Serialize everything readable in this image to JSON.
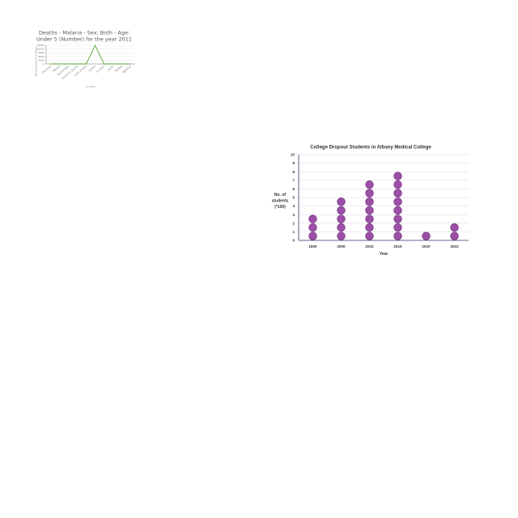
{
  "chart_data": [
    {
      "type": "line",
      "title": "Deaths - Malaria - Sex: Both - Age: Under 5 (Number) for the year 2011",
      "title_lines": [
        "Deaths - Malaria - Sex: Both - Age:",
        "Under 5 (Number) for the year 2011"
      ],
      "xlabel": "Country",
      "ylabel": "No. of deaths in children",
      "categories": [
        "Denmark",
        "Albania",
        "Montenegro",
        "American Samoa",
        "Côte d'Ivoire",
        "Greece",
        "Ecuador",
        "Japan",
        "Tokelau",
        "Tajikistan"
      ],
      "values": [
        0,
        0,
        0,
        0,
        0,
        15000,
        0,
        0,
        0,
        0
      ],
      "yticks": [
        "15000",
        "12000",
        "9000",
        "6000",
        "3000",
        "0"
      ],
      "ylim": [
        0,
        15000
      ],
      "grid": true,
      "line_color": "#5aa02c"
    },
    {
      "type": "scatter",
      "subtype": "dot-plot",
      "title": "College Dropout Students in Albany Medical College",
      "xlabel": "Year",
      "ylabel_lines": [
        "No. of",
        "students",
        "(*100)"
      ],
      "categories": [
        "1900",
        "2000",
        "2010",
        "2015",
        "2020",
        "2022"
      ],
      "values": [
        3,
        5,
        7,
        8,
        1,
        2
      ],
      "ylim": [
        0,
        10
      ],
      "yticks": [
        "0",
        "1",
        "2",
        "3",
        "4",
        "5",
        "6",
        "7",
        "8",
        "9",
        "10"
      ],
      "grid": true,
      "dot_color": "#9b4fa6",
      "dot_stroke": "#6b2a75"
    }
  ]
}
